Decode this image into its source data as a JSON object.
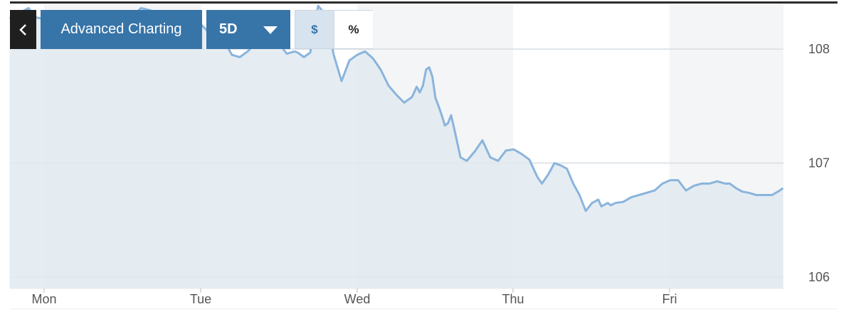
{
  "toolbar": {
    "back_icon": "chevron-left-icon",
    "advanced_label": "Advanced Charting",
    "range_label": "5D",
    "range_icon": "caret-down-icon",
    "currency_label": "$",
    "percent_label": "%"
  },
  "colors": {
    "line": "#8ab4dc",
    "area": "#e0eaf1",
    "band": "#f4f5f6",
    "button": "#3774a8",
    "active_toggle": "#d7e3ee"
  },
  "chart_data": {
    "type": "area",
    "title": "",
    "xlabel": "",
    "ylabel": "",
    "x_tick_labels": [
      "Mon",
      "Tue",
      "Wed",
      "Thu",
      "Fri"
    ],
    "y_ticks": [
      106,
      107,
      108
    ],
    "y_tick_labels": [
      "106",
      "107",
      "108"
    ],
    "ylim": [
      105.9,
      108.4
    ],
    "x_domain": [
      -0.22,
      4.72
    ],
    "grid": "horizontal",
    "series": [
      {
        "x": [
          -0.22,
          -0.18,
          -0.14,
          -0.1,
          -0.06,
          -0.02,
          0.03,
          0.07,
          0.1,
          0.14,
          0.17,
          0.22,
          0.26,
          0.3,
          0.33,
          0.38,
          0.42,
          0.46,
          0.5,
          0.54,
          0.58,
          0.62,
          0.68,
          0.72,
          0.78,
          0.82,
          0.87,
          0.9,
          0.95,
          1.0,
          1.05,
          1.1,
          1.15,
          1.2,
          1.25,
          1.3,
          1.35,
          1.4,
          1.45,
          1.5,
          1.55,
          1.6,
          1.62,
          1.66,
          1.7,
          1.75,
          1.8,
          1.85,
          1.9,
          1.95,
          2.0,
          2.05,
          2.1,
          2.15,
          2.2,
          2.25,
          2.3,
          2.35,
          2.38,
          2.4,
          2.42,
          2.44,
          2.46,
          2.48,
          2.5,
          2.52,
          2.54,
          2.56,
          2.58,
          2.6,
          2.62,
          2.66,
          2.7,
          2.75,
          2.8,
          2.85,
          2.9,
          2.95,
          3.0,
          3.05,
          3.1,
          3.15,
          3.18,
          3.22,
          3.26,
          3.3,
          3.34,
          3.38,
          3.42,
          3.46,
          3.5,
          3.54,
          3.56,
          3.6,
          3.62,
          3.65,
          3.7,
          3.75,
          3.8,
          3.85,
          3.9,
          3.95,
          4.0,
          4.05,
          4.1,
          4.15,
          4.2,
          4.25,
          4.3,
          4.35,
          4.38,
          4.4,
          4.42,
          4.46,
          4.5,
          4.55,
          4.6,
          4.65,
          4.7,
          4.72
        ],
        "y": [
          108.28,
          108.25,
          108.33,
          108.36,
          108.28,
          108.27,
          108.27,
          108.24,
          108.25,
          108.29,
          108.23,
          108.19,
          108.25,
          108.21,
          108.25,
          108.27,
          108.28,
          108.29,
          108.29,
          108.28,
          108.31,
          108.36,
          108.34,
          108.32,
          108.3,
          108.28,
          108.3,
          108.27,
          108.28,
          108.22,
          108.15,
          108.07,
          108.07,
          107.95,
          107.93,
          107.98,
          108.05,
          108.02,
          108.07,
          108.05,
          107.96,
          107.98,
          107.97,
          107.93,
          107.97,
          108.38,
          108.3,
          107.95,
          107.72,
          107.9,
          107.95,
          107.98,
          107.92,
          107.82,
          107.68,
          107.6,
          107.53,
          107.58,
          107.67,
          107.62,
          107.68,
          107.82,
          107.84,
          107.76,
          107.57,
          107.5,
          107.42,
          107.33,
          107.35,
          107.42,
          107.3,
          107.05,
          107.02,
          107.1,
          107.2,
          107.05,
          107.02,
          107.11,
          107.12,
          107.08,
          107.03,
          106.88,
          106.82,
          106.9,
          107.0,
          106.98,
          106.95,
          106.82,
          106.72,
          106.58,
          106.65,
          106.68,
          106.62,
          106.65,
          106.63,
          106.65,
          106.66,
          106.7,
          106.72,
          106.74,
          106.76,
          106.82,
          106.85,
          106.85,
          106.76,
          106.8,
          106.82,
          106.82,
          106.84,
          106.82,
          106.82,
          106.8,
          106.78,
          106.75,
          106.74,
          106.72,
          106.72,
          106.72,
          106.76,
          106.78
        ]
      }
    ]
  }
}
